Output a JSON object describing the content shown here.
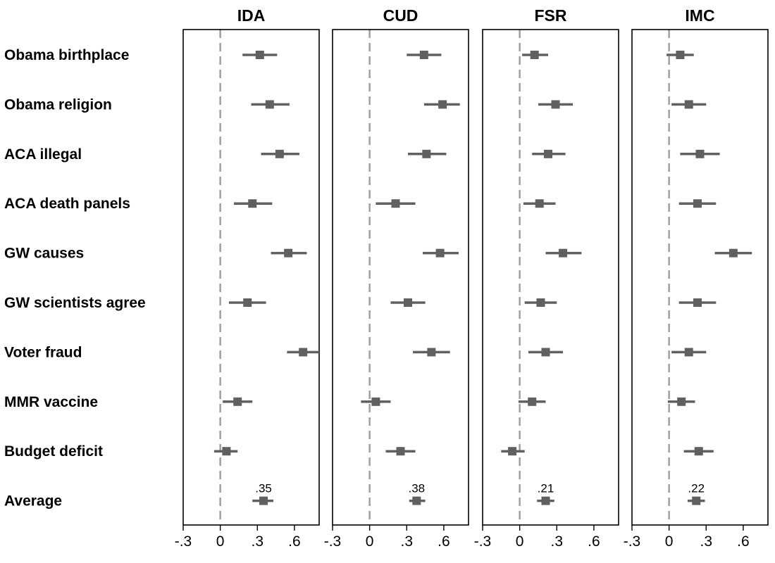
{
  "chart_data": {
    "type": "scatter",
    "style": "coefficient plot with confidence intervals",
    "colors": {
      "marker": "#606060",
      "ci": "#606060",
      "zero_line": "#a0a0a0",
      "frame": "#000000"
    },
    "xlim": [
      -0.3,
      0.8
    ],
    "ticks": [
      -0.3,
      0,
      0.3,
      0.6
    ],
    "tick_labels": [
      "-.3",
      "0",
      ".3",
      ".6"
    ],
    "zero_line": "dashed at 0",
    "rows": [
      "Obama birthplace",
      "Obama religion",
      "ACA illegal",
      "ACA death panels",
      "GW causes",
      "GW scientists agree",
      "Voter fraud",
      "MMR vaccine",
      "Budget deficit",
      "Average"
    ],
    "panels": [
      {
        "title": "IDA",
        "average_label": ".35",
        "points": [
          {
            "est": 0.32,
            "lo": 0.18,
            "hi": 0.46
          },
          {
            "est": 0.4,
            "lo": 0.25,
            "hi": 0.56
          },
          {
            "est": 0.48,
            "lo": 0.33,
            "hi": 0.64
          },
          {
            "est": 0.26,
            "lo": 0.11,
            "hi": 0.42
          },
          {
            "est": 0.55,
            "lo": 0.41,
            "hi": 0.7
          },
          {
            "est": 0.22,
            "lo": 0.07,
            "hi": 0.37
          },
          {
            "est": 0.67,
            "lo": 0.54,
            "hi": 0.8
          },
          {
            "est": 0.14,
            "lo": 0.02,
            "hi": 0.26
          },
          {
            "est": 0.05,
            "lo": -0.05,
            "hi": 0.14
          },
          {
            "est": 0.35,
            "lo": 0.26,
            "hi": 0.43
          }
        ]
      },
      {
        "title": "CUD",
        "average_label": ".38",
        "points": [
          {
            "est": 0.44,
            "lo": 0.3,
            "hi": 0.58
          },
          {
            "est": 0.59,
            "lo": 0.44,
            "hi": 0.73
          },
          {
            "est": 0.46,
            "lo": 0.31,
            "hi": 0.62
          },
          {
            "est": 0.21,
            "lo": 0.05,
            "hi": 0.37
          },
          {
            "est": 0.57,
            "lo": 0.43,
            "hi": 0.72
          },
          {
            "est": 0.31,
            "lo": 0.17,
            "hi": 0.45
          },
          {
            "est": 0.5,
            "lo": 0.35,
            "hi": 0.65
          },
          {
            "est": 0.05,
            "lo": -0.07,
            "hi": 0.17
          },
          {
            "est": 0.25,
            "lo": 0.13,
            "hi": 0.37
          },
          {
            "est": 0.38,
            "lo": 0.32,
            "hi": 0.45
          }
        ]
      },
      {
        "title": "FSR",
        "average_label": ".21",
        "points": [
          {
            "est": 0.12,
            "lo": 0.02,
            "hi": 0.23
          },
          {
            "est": 0.29,
            "lo": 0.15,
            "hi": 0.43
          },
          {
            "est": 0.23,
            "lo": 0.1,
            "hi": 0.37
          },
          {
            "est": 0.16,
            "lo": 0.03,
            "hi": 0.29
          },
          {
            "est": 0.35,
            "lo": 0.21,
            "hi": 0.5
          },
          {
            "est": 0.17,
            "lo": 0.04,
            "hi": 0.3
          },
          {
            "est": 0.21,
            "lo": 0.07,
            "hi": 0.35
          },
          {
            "est": 0.1,
            "lo": -0.01,
            "hi": 0.21
          },
          {
            "est": -0.06,
            "lo": -0.15,
            "hi": 0.04
          },
          {
            "est": 0.21,
            "lo": 0.14,
            "hi": 0.28
          }
        ]
      },
      {
        "title": "IMC",
        "average_label": ".22",
        "points": [
          {
            "est": 0.09,
            "lo": -0.02,
            "hi": 0.2
          },
          {
            "est": 0.16,
            "lo": 0.02,
            "hi": 0.3
          },
          {
            "est": 0.25,
            "lo": 0.09,
            "hi": 0.41
          },
          {
            "est": 0.23,
            "lo": 0.08,
            "hi": 0.38
          },
          {
            "est": 0.52,
            "lo": 0.37,
            "hi": 0.67
          },
          {
            "est": 0.23,
            "lo": 0.08,
            "hi": 0.38
          },
          {
            "est": 0.16,
            "lo": 0.02,
            "hi": 0.3
          },
          {
            "est": 0.1,
            "lo": -0.01,
            "hi": 0.21
          },
          {
            "est": 0.24,
            "lo": 0.12,
            "hi": 0.36
          },
          {
            "est": 0.22,
            "lo": 0.15,
            "hi": 0.29
          }
        ]
      }
    ]
  }
}
